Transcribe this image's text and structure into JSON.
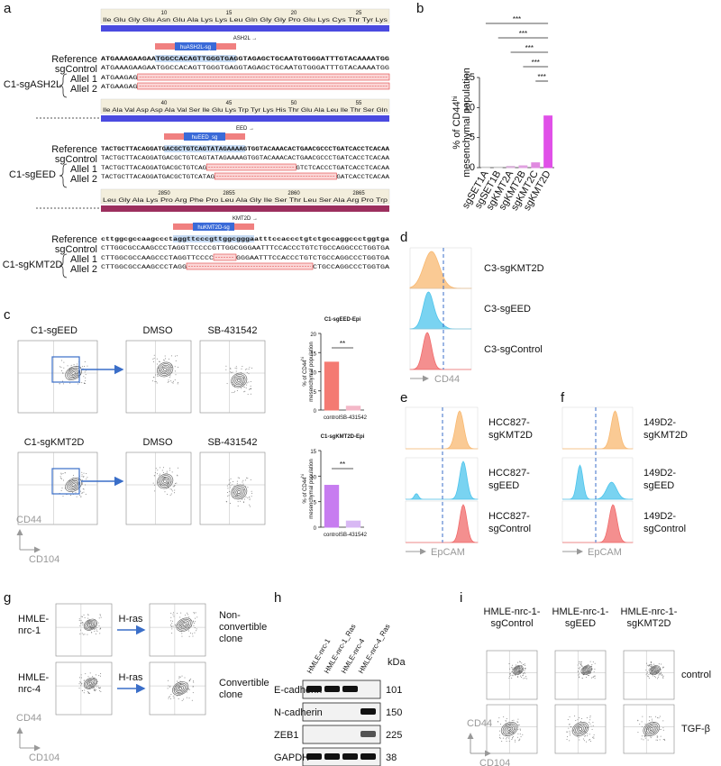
{
  "letters": [
    "a",
    "b",
    "c",
    "d",
    "e",
    "f",
    "g",
    "h",
    "i"
  ],
  "panel_a": {
    "row_labels": {
      "reference": "Reference",
      "control": "sgControl",
      "allel1": "Allel 1",
      "allel2": "Allel 2"
    },
    "blocks": [
      {
        "ruler": [
          10,
          15,
          20,
          25
        ],
        "aa": "Ile Glu Gly Glu Asn Glu Ala Lys Lys Leu Gln Gly Gly Pro Glu Lys Cys Thr Tyr Lys",
        "gene": "ASH2L →",
        "sg": "huASH2L-sg",
        "sample": "C1-sgASH2L",
        "reference": "ATGAAAGAAGAATGGCCACAGTTGGGTGAGGTAGAGCTGCAATGTGGGATTTGTACAAAATGG",
        "control": "ATGAAAGAAGAATGGCCACAGTTGGGTGAGGTAGAGCTGCAATGTGGGATTTGTACAAAATGG",
        "allel1": {
          "start": "ATGAAGAG"
        },
        "allel2": {
          "start": "ATGAAGAG"
        }
      },
      {
        "ruler": [
          40,
          45,
          50,
          55
        ],
        "aa": "Ile Ala Val Asp Asp Ala Val Ser Ile Glu Lys Trp Tyr Lys His Thr Glu Ala Leu Ile Thr Ser Gln",
        "gene": "EED →",
        "sg": "huEED_sg",
        "sample": "C1-sgEED",
        "reference": "TACTGCTTACAGGATGACGCTGTCAGTATAGAAAAGTGGTACAAACACTGAACGCCCTGATCACCTCACAA",
        "control": "TACTGCTTACAGGATGACGCTGTCAGTATAGAAAAGTGGTACAAACACTGAACGCCCTGATCACCTCACAA",
        "allel1": {
          "start": "TACTGCTTACAGGATGACGCTGTCAG",
          "end": "GTCTCACCCTGATCACCTCACAA"
        },
        "allel2": {
          "start": "TACTGCTTACAGGATGACGCTGTCATAG",
          "end": "GATCACCTCACAA"
        }
      },
      {
        "ruler": [
          2850,
          2855,
          2860,
          2865
        ],
        "aa": "Leu Gly Ala Lys Pro Arg Phe Pro Leu Ala Gly Ile Ser Thr Leu Ser Ala Arg Pro Trp",
        "gene": "KMT2D →",
        "sg": "huKMT2D-sg",
        "sample": "C1-sgKMT2D",
        "reference": "cttggcgccaagccctaggttcccgttggcgggaatttccaccctgtctgccaggccctggtga",
        "control": "CTTGGCGCCAAGCCCTAGGTTCCCCGTTGGCGGGAATTTCCACCCTGTCTGCCAGGCCCTGGTGA",
        "allel1": {
          "start": "CTTGGCGCCAAGCCCTAGGTTCCCC",
          "end": "GGGAATTTCCACCCTGTCTGCCAGGCCCTGGTGA"
        },
        "allel2": {
          "start": "CTTGGCGCCAAGCCCTAGG",
          "end": "CTGCCAGGCCCTGGTGA"
        }
      }
    ]
  },
  "panel_c": {
    "rows": [
      {
        "sample": "C1-sgEED",
        "conditions": [
          "DMSO",
          "SB-431542"
        ]
      },
      {
        "sample": "C1-sgKMT2D",
        "conditions": [
          "DMSO",
          "SB-431542"
        ]
      }
    ],
    "xaxis": "CD104",
    "yaxis": "CD44"
  },
  "panel_d": {
    "samples": [
      "C3-sgKMT2D",
      "C3-sgEED",
      "C3-sgControl"
    ],
    "axis": "CD44"
  },
  "panel_e": {
    "samples": [
      [
        "HCC827-",
        "sgKMT2D"
      ],
      [
        "HCC827-",
        "sgEED"
      ],
      [
        "HCC827-",
        "sgControl"
      ]
    ],
    "axis": "EpCAM"
  },
  "panel_f": {
    "samples": [
      [
        "149D2-",
        "sgKMT2D"
      ],
      [
        "149D2-",
        "sgEED"
      ],
      [
        "149D2-",
        "sgControl"
      ]
    ],
    "axis": "EpCAM"
  },
  "panel_g": {
    "rows": [
      {
        "cell": [
          "HMLE-",
          "nrc-1"
        ],
        "treatment": "H-ras",
        "outcome": [
          "Non-",
          "convertible",
          "clone"
        ]
      },
      {
        "cell": [
          "HMLE-",
          "nrc-4"
        ],
        "treatment": "H-ras",
        "outcome": [
          "Convertible",
          "clone"
        ]
      }
    ],
    "xaxis": "CD104",
    "yaxis": "CD44"
  },
  "panel_h": {
    "lanes": [
      "HMLE-nrc-1",
      "HMLE-nrc-1_Ras",
      "HMLE-nrc-4",
      "HMLE-nrc-4_Ras"
    ],
    "unit": "kDa",
    "blots": [
      {
        "protein": "E-cadherin",
        "kda": "101"
      },
      {
        "protein": "N-cadherin",
        "kda": "150"
      },
      {
        "protein": "ZEB1",
        "kda": "225"
      },
      {
        "protein": "GAPDH",
        "kda": "38"
      }
    ]
  },
  "panel_i": {
    "columns": [
      [
        "HMLE-nrc-1-",
        "sgControl"
      ],
      [
        "HMLE-nrc-1-",
        "sgEED"
      ],
      [
        "HMLE-nrc-1-",
        "sgKMT2D"
      ]
    ],
    "rows": [
      "control",
      "TGF-β"
    ],
    "xaxis": "CD104",
    "yaxis": "CD44"
  },
  "chart_data": [
    {
      "type": "bar",
      "categories": [
        "sgSET1A",
        "sgSET1B",
        "sgKMT2A",
        "sgKMT2B",
        "sgKMT2C",
        "sgKMT2D"
      ],
      "values": [
        0.1,
        0.1,
        0.2,
        0.3,
        0.8,
        8.6
      ],
      "colors": [
        "#cccccc",
        "#cccccc",
        "#d8b0d8",
        "#e0a0e0",
        "#e08ae0",
        "#e050e8"
      ],
      "ylim": [
        0,
        15
      ],
      "yticks": [
        0,
        5,
        10,
        15
      ],
      "ylabel": {
        "text": "% of CD44",
        "sup": "hi",
        "line2": "mesenchymal population"
      },
      "annotations": [
        "***",
        "***",
        "***",
        "***",
        "***"
      ]
    },
    {
      "type": "bar",
      "title": "C1-sgEED-Epi",
      "categories": [
        "control",
        "SB-431542"
      ],
      "values": [
        12.5,
        1
      ],
      "colors": [
        "#f47a72",
        "#f4b8c8"
      ],
      "ylim": [
        0,
        20
      ],
      "yticks": [
        0,
        5,
        10,
        15,
        20
      ],
      "ylabel": {
        "text": "% of CD44",
        "sup": "hi",
        "line2": "mesenchymal population"
      },
      "annotations": [
        "**"
      ]
    },
    {
      "type": "bar",
      "title": "C1-sgKMT2D-Epi",
      "categories": [
        "control",
        "SB-431542"
      ],
      "values": [
        8.2,
        1.2
      ],
      "colors": [
        "#c77cf0",
        "#d8b8f4"
      ],
      "ylim": [
        0,
        15
      ],
      "yticks": [
        0,
        5,
        10,
        15
      ],
      "ylabel": {
        "text": "% of CD44",
        "sup": "hi",
        "line2": "mesenchymal population"
      },
      "annotations": [
        "**"
      ]
    }
  ]
}
